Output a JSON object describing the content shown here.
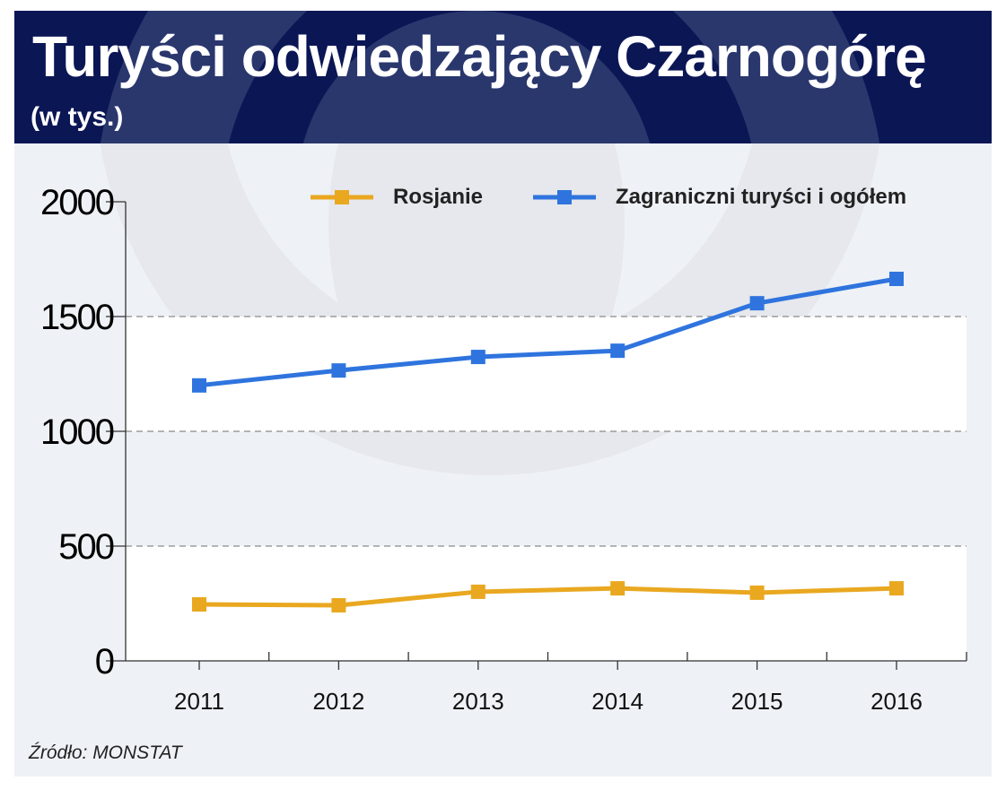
{
  "header": {
    "title": "Turyści odwiedzający Czarnogórę",
    "subtitle": "(w tys.)"
  },
  "source": "Źródło: MONSTAT",
  "colors": {
    "header_bg": "#0b1655",
    "russians": "#e9a820",
    "total": "#2f74de",
    "panel_bg": "#eef2f6"
  },
  "chart_data": {
    "type": "line",
    "title": "Turyści odwiedzający Czarnogórę",
    "subtitle": "(w tys.)",
    "xlabel": "",
    "ylabel": "",
    "categories": [
      "2011",
      "2012",
      "2013",
      "2014",
      "2015",
      "2016"
    ],
    "ylim": [
      0,
      2000
    ],
    "yticks": [
      "0",
      "500",
      "1000",
      "1500",
      "2000"
    ],
    "grid": true,
    "legend_position": "top-right",
    "series": [
      {
        "name": "Rosjanie",
        "color": "#e9a820",
        "values": [
          246,
          242,
          301,
          316,
          297,
          316
        ]
      },
      {
        "name": "Zagraniczni turyści i ogółem",
        "color": "#2f74de",
        "values": [
          1200,
          1265,
          1324,
          1351,
          1558,
          1664
        ]
      }
    ]
  }
}
